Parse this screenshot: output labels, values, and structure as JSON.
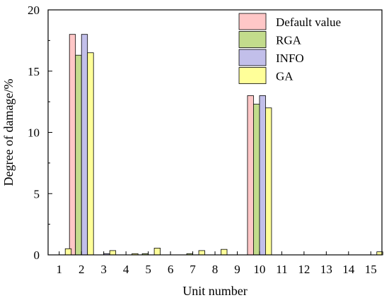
{
  "chart_data": {
    "type": "bar",
    "xlabel": "Unit number",
    "ylabel": "Degree of damage/%",
    "ylim": [
      0,
      20
    ],
    "yticks": [
      0,
      5,
      10,
      15,
      20
    ],
    "categories": [
      "1",
      "2",
      "3",
      "4",
      "5",
      "6",
      "7",
      "8",
      "9",
      "10",
      "11",
      "12",
      "13",
      "14",
      "15"
    ],
    "legend_position": "top-right",
    "series": [
      {
        "name": "Default value",
        "color": "#ffc7c7",
        "values": [
          0,
          18,
          0,
          0,
          0,
          0,
          0,
          0,
          0,
          13,
          0,
          0,
          0,
          0,
          0
        ]
      },
      {
        "name": "RGA",
        "color": "#c3dc8c",
        "values": [
          0,
          16.3,
          0,
          0,
          0.1,
          0,
          0.1,
          0,
          0,
          12.3,
          0,
          0,
          0,
          0,
          0
        ]
      },
      {
        "name": "INFO",
        "color": "#c2bfea",
        "values": [
          0,
          18,
          0.1,
          0,
          0,
          0,
          0,
          0,
          0,
          13,
          0,
          0,
          0,
          0,
          0
        ]
      },
      {
        "name": "GA",
        "color": "#ffff99",
        "values": [
          0.5,
          16.5,
          0.35,
          0.1,
          0.55,
          0,
          0.35,
          0.45,
          0,
          12,
          0,
          0,
          0,
          0,
          0.25
        ]
      }
    ]
  }
}
